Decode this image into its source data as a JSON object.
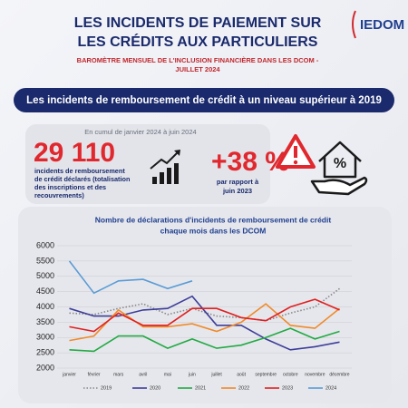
{
  "header": {
    "title": [
      "LES INCIDENTS DE PAIEMENT SUR",
      "LES CRÉDITS AUX PARTICULIERS"
    ],
    "subtitle": [
      "BAROMÈTRE MENSUEL DE L'INCLUSION FINANCIÈRE DANS LES DCOM -",
      "JUILLET 2024"
    ],
    "logo": "IEDOM"
  },
  "banner": "Les incidents de remboursement de crédit à un niveau supérieur à 2019",
  "stats": {
    "period": "En cumul de janvier 2024 à juin 2024",
    "count": "29 110",
    "count_text": [
      "incidents de remboursement",
      "de crédit déclarés (totalisation",
      "des inscriptions et des",
      "recouvrements)"
    ],
    "change": "+38 %",
    "change_text": [
      "par rapport à",
      "juin 2023"
    ]
  },
  "chart_data": {
    "type": "line",
    "title": [
      "Nombre de déclarations d'incidents de remboursement de crédit",
      "chaque mois dans les DCOM"
    ],
    "categories": [
      "janvier",
      "février",
      "mars",
      "avril",
      "mai",
      "juin",
      "juillet",
      "août",
      "septembre",
      "octobre",
      "novembre",
      "décembre"
    ],
    "ylim": [
      2000,
      6000
    ],
    "yticks": [
      2000,
      2500,
      3000,
      3500,
      4000,
      4500,
      5000,
      5500,
      6000
    ],
    "grid": true,
    "series": [
      {
        "name": "2019",
        "color": "#888888",
        "dashed": true,
        "values": [
          3800,
          3750,
          3950,
          4100,
          3750,
          3950,
          3700,
          3650,
          3550,
          3800,
          4000,
          4600
        ]
      },
      {
        "name": "2020",
        "color": "#3d3d99",
        "values": [
          3950,
          3700,
          3700,
          3900,
          3950,
          4350,
          3400,
          3400,
          2950,
          2600,
          2700,
          2850
        ]
      },
      {
        "name": "2021",
        "color": "#22aa44",
        "values": [
          2600,
          2550,
          3050,
          3050,
          2650,
          2950,
          2650,
          2750,
          3000,
          3300,
          2950,
          3200
        ]
      },
      {
        "name": "2022",
        "color": "#f08a2a",
        "values": [
          2900,
          3050,
          3900,
          3350,
          3350,
          3450,
          3200,
          3500,
          4100,
          3400,
          3300,
          3950
        ]
      },
      {
        "name": "2023",
        "color": "#e02020",
        "values": [
          3350,
          3200,
          3800,
          3400,
          3400,
          3950,
          3950,
          3650,
          3550,
          4000,
          4250,
          3900
        ]
      },
      {
        "name": "2024",
        "color": "#5a9bd5",
        "values": [
          5500,
          4450,
          4850,
          4900,
          4600,
          4850,
          null,
          null,
          null,
          null,
          null,
          null
        ]
      }
    ]
  }
}
